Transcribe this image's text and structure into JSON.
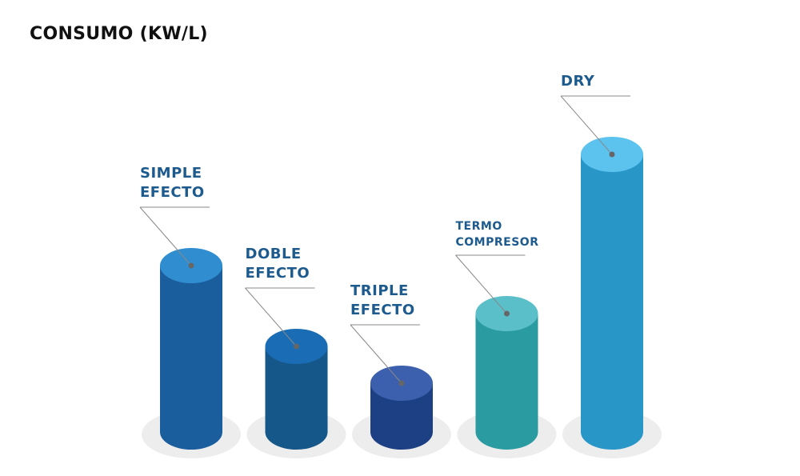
{
  "chart_data": {
    "type": "bar",
    "title": "CONSUMO (KW/L)",
    "categories": [
      "SIMPLE EFECTO",
      "DOBLE EFECTO",
      "TRIPLE EFECTO",
      "TERMO COMPRESOR",
      "DRY"
    ],
    "values": [
      208,
      107,
      61,
      148,
      347
    ],
    "colors": [
      "#1a5e9e",
      "#155789",
      "#1d3f84",
      "#2a9ba0",
      "#2996c8"
    ],
    "top_colors": [
      "#2f8dd0",
      "#1a6db4",
      "#3c60ad",
      "#5bbfc9",
      "#5cc3ef"
    ]
  }
}
